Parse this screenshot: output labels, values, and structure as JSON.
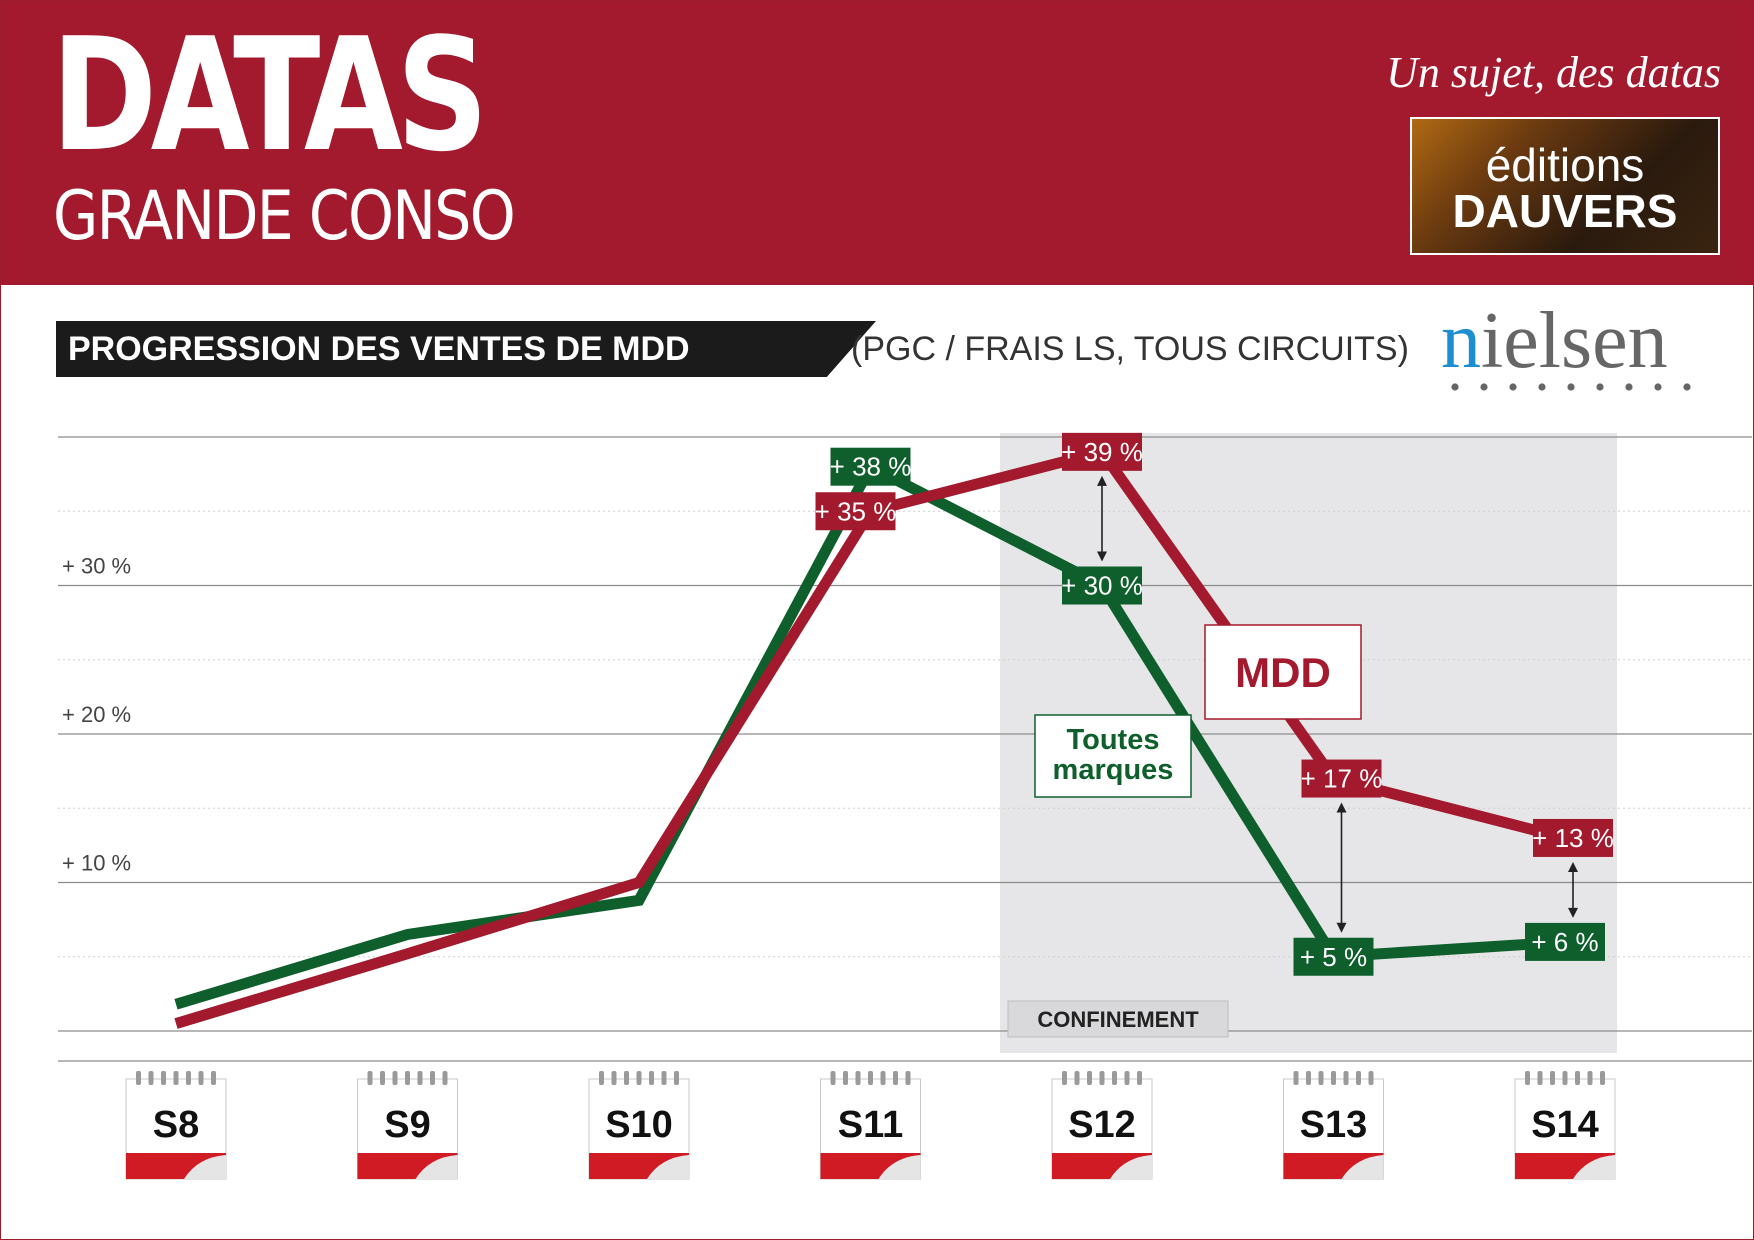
{
  "header": {
    "title": "DATAS",
    "subtitle": "GRANDE CONSO",
    "tagline": "Un sujet, des datas",
    "publisher_line1": "éditions",
    "publisher_line2": "DAUVERS"
  },
  "chart_header": {
    "title": "PROGRESSION DES VENTES DE MDD",
    "subtitle": "(PGC / FRAIS LS, TOUS CIRCUITS)",
    "source_logo": "nielsen"
  },
  "colors": {
    "brand": "#a3192d",
    "mdd": "#a3192d",
    "toutes_marques": "#0e5f2c",
    "confinement_shade": "#e6e6e9"
  },
  "chart_data": {
    "type": "line",
    "title": "PROGRESSION DES VENTES DE MDD",
    "subtitle": "(PGC / FRAIS LS, TOUS CIRCUITS)",
    "categories": [
      "S8",
      "S9",
      "S10",
      "S11",
      "S12",
      "S13",
      "S14"
    ],
    "ylim": [
      -1,
      40
    ],
    "yticks": [
      10,
      20,
      30
    ],
    "ytick_labels": [
      "+ 10 %",
      "+ 20 %",
      "+ 30 %"
    ],
    "series": [
      {
        "name": "Toutes marques",
        "color": "#0e5f2c",
        "values": [
          1.8,
          6.5,
          8.8,
          38,
          30,
          5,
          6
        ],
        "labels": [
          null,
          null,
          null,
          "+ 38 %",
          "+ 30 %",
          "+ 5 %",
          "+ 6 %"
        ]
      },
      {
        "name": "MDD",
        "color": "#a3192d",
        "values": [
          0.5,
          5.2,
          10,
          35,
          39,
          17,
          13
        ],
        "labels": [
          null,
          null,
          null,
          "+ 35 %",
          "+ 39 %",
          "+ 17 %",
          "+ 13 %"
        ]
      }
    ],
    "annotations": {
      "shaded_period": {
        "label": "CONFINEMENT",
        "from": "S12",
        "to": "S14"
      },
      "gap_arrows": [
        "S12",
        "S13",
        "S14"
      ]
    },
    "legend": {
      "position": "inline"
    }
  }
}
